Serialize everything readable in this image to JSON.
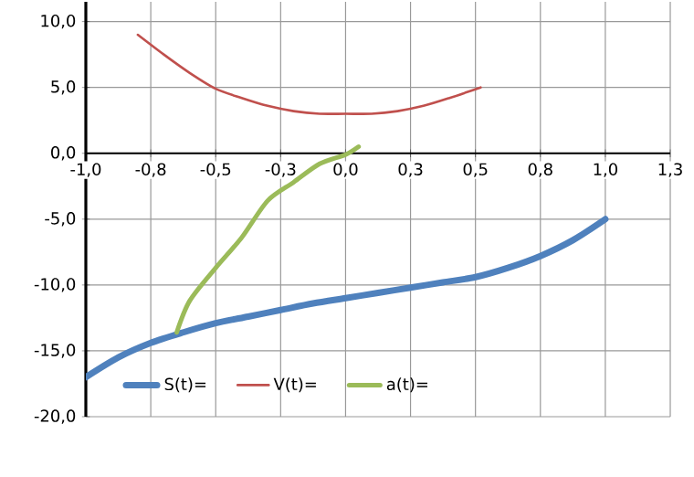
{
  "chart_data": {
    "type": "line",
    "xlim": [
      -1,
      1.25
    ],
    "ylim": [
      -20,
      11.5
    ],
    "xticks": [
      {
        "value": -1,
        "label": "-1,0"
      },
      {
        "value": -0.75,
        "label": "-0,8"
      },
      {
        "value": -0.5,
        "label": "-0,5"
      },
      {
        "value": -0.25,
        "label": "-0,3"
      },
      {
        "value": 0,
        "label": "0,0"
      },
      {
        "value": 0.25,
        "label": "0,3"
      },
      {
        "value": 0.5,
        "label": "0,5"
      },
      {
        "value": 0.75,
        "label": "0,8"
      },
      {
        "value": 1,
        "label": "1,0"
      },
      {
        "value": 1.25,
        "label": "1,3"
      }
    ],
    "yticks": [
      {
        "value": -20,
        "label": "-20,0"
      },
      {
        "value": -15,
        "label": "-15,0"
      },
      {
        "value": -10,
        "label": "-10,0"
      },
      {
        "value": -5,
        "label": "-5,0"
      },
      {
        "value": 0,
        "label": "0,0"
      },
      {
        "value": 5,
        "label": "5,0"
      },
      {
        "value": 10,
        "label": "10,0"
      }
    ],
    "grid": true,
    "legend": "bottom",
    "series": [
      {
        "name": "S(t)=",
        "color": "#4f81bd",
        "x": [
          -1,
          -0.875,
          -0.75,
          -0.625,
          -0.5,
          -0.375,
          -0.25,
          -0.125,
          0,
          0.125,
          0.25,
          0.375,
          0.5,
          0.625,
          0.75,
          0.875,
          1
        ],
        "values": [
          -17.0,
          -15.5,
          -14.4,
          -13.6,
          -12.9,
          -12.4,
          -11.9,
          -11.4,
          -11.0,
          -10.6,
          -10.2,
          -9.8,
          -9.4,
          -8.7,
          -7.8,
          -6.6,
          -5.0
        ]
      },
      {
        "name": "V(t)=",
        "color": "#c0504d",
        "x": [
          -0.8,
          -0.7,
          -0.6,
          -0.5,
          -0.4,
          -0.3,
          -0.2,
          -0.1,
          0,
          0.1,
          0.2,
          0.3,
          0.4,
          0.52
        ],
        "values": [
          9.0,
          7.5,
          6.1,
          4.9,
          4.2,
          3.6,
          3.2,
          3.0,
          3.0,
          3.0,
          3.2,
          3.6,
          4.2,
          5.0
        ]
      },
      {
        "name": "a(t)=",
        "color": "#9bbb59",
        "x": [
          -0.65,
          -0.6,
          -0.5,
          -0.4,
          -0.3,
          -0.2,
          -0.1,
          0,
          0.05
        ],
        "values": [
          -13.6,
          -11.2,
          -8.7,
          -6.4,
          -3.6,
          -2.2,
          -0.8,
          -0.1,
          0.5
        ]
      }
    ]
  }
}
